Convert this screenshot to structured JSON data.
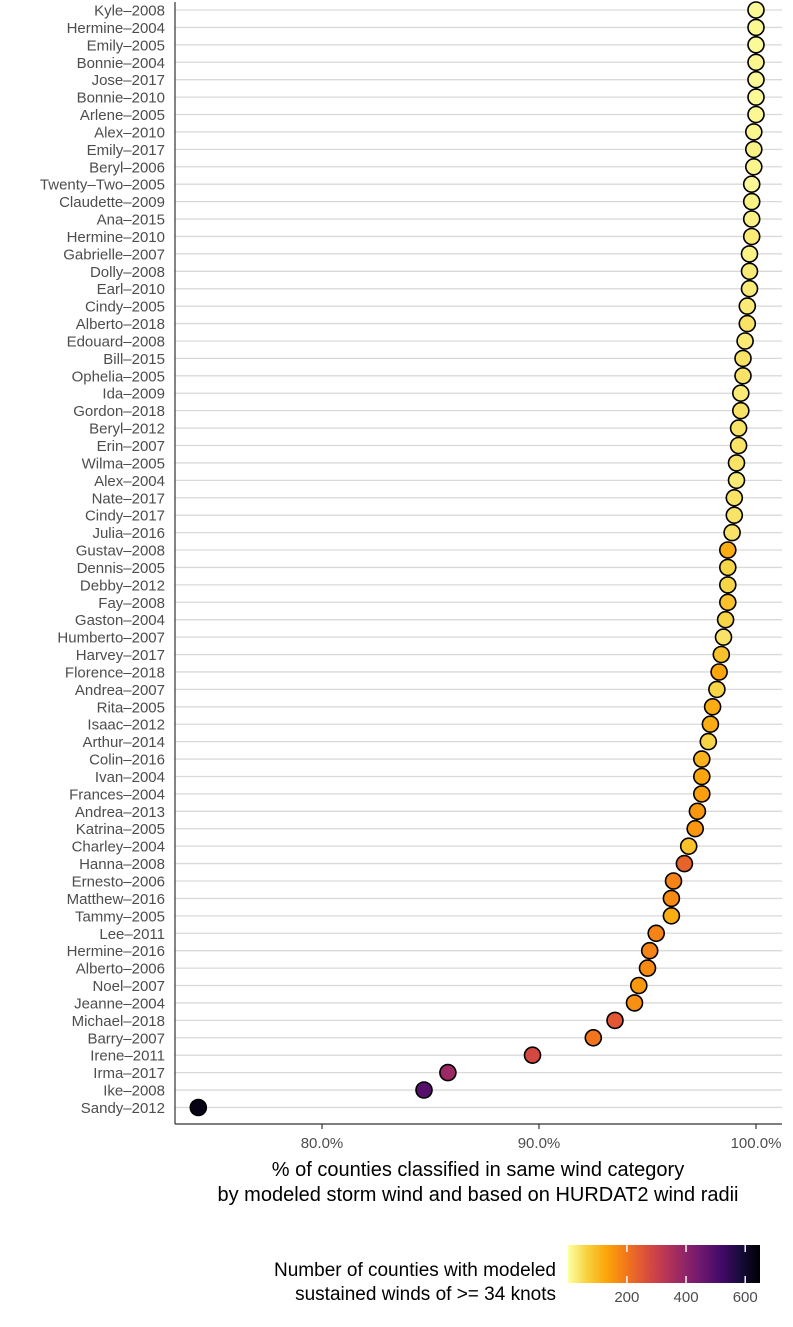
{
  "chart_data": {
    "type": "scatter",
    "title": "",
    "xlabel_lines": [
      "% of counties classified in same wind category",
      "by modeled storm wind and based on HURDAT2 wind radii"
    ],
    "ylabel": "",
    "x_axis": {
      "ticks": [
        80,
        90,
        100
      ],
      "tick_labels": [
        "80.0%",
        "90.0%",
        "100.0%"
      ],
      "range": [
        74.2,
        101.2
      ]
    },
    "grid": "horizontal major lines at each storm",
    "legend": {
      "placement": "bottom",
      "title_lines": [
        "Number of counties with modeled",
        "sustained winds of >= 34 knots"
      ],
      "ticks": [
        200,
        400,
        600
      ],
      "tick_labels": [
        "200",
        "400",
        "600"
      ],
      "range": [
        1,
        650
      ],
      "palette": "inferno (reversed)"
    },
    "points": [
      {
        "storm": "Kyle–2008",
        "pct": 100.0,
        "counties": 10
      },
      {
        "storm": "Hermine–2004",
        "pct": 100.0,
        "counties": 12
      },
      {
        "storm": "Emily–2005",
        "pct": 100.0,
        "counties": 8
      },
      {
        "storm": "Bonnie–2004",
        "pct": 100.0,
        "counties": 15
      },
      {
        "storm": "Jose–2017",
        "pct": 100.0,
        "counties": 10
      },
      {
        "storm": "Bonnie–2010",
        "pct": 100.0,
        "counties": 10
      },
      {
        "storm": "Arlene–2005",
        "pct": 100.0,
        "counties": 12
      },
      {
        "storm": "Alex–2010",
        "pct": 99.9,
        "counties": 15
      },
      {
        "storm": "Emily–2017",
        "pct": 99.9,
        "counties": 20
      },
      {
        "storm": "Beryl–2006",
        "pct": 99.9,
        "counties": 15
      },
      {
        "storm": "Twenty–Two–2005",
        "pct": 99.8,
        "counties": 10
      },
      {
        "storm": "Claudette–2009",
        "pct": 99.8,
        "counties": 20
      },
      {
        "storm": "Ana–2015",
        "pct": 99.8,
        "counties": 20
      },
      {
        "storm": "Hermine–2010",
        "pct": 99.8,
        "counties": 30
      },
      {
        "storm": "Gabrielle–2007",
        "pct": 99.7,
        "counties": 20
      },
      {
        "storm": "Dolly–2008",
        "pct": 99.7,
        "counties": 30
      },
      {
        "storm": "Earl–2010",
        "pct": 99.7,
        "counties": 30
      },
      {
        "storm": "Cindy–2005",
        "pct": 99.6,
        "counties": 30
      },
      {
        "storm": "Alberto–2018",
        "pct": 99.6,
        "counties": 40
      },
      {
        "storm": "Edouard–2008",
        "pct": 99.5,
        "counties": 30
      },
      {
        "storm": "Bill–2015",
        "pct": 99.4,
        "counties": 40
      },
      {
        "storm": "Ophelia–2005",
        "pct": 99.4,
        "counties": 40
      },
      {
        "storm": "Ida–2009",
        "pct": 99.3,
        "counties": 30
      },
      {
        "storm": "Gordon–2018",
        "pct": 99.3,
        "counties": 40
      },
      {
        "storm": "Beryl–2012",
        "pct": 99.2,
        "counties": 40
      },
      {
        "storm": "Erin–2007",
        "pct": 99.2,
        "counties": 40
      },
      {
        "storm": "Wilma–2005",
        "pct": 99.1,
        "counties": 40
      },
      {
        "storm": "Alex–2004",
        "pct": 99.1,
        "counties": 30
      },
      {
        "storm": "Nate–2017",
        "pct": 99.0,
        "counties": 40
      },
      {
        "storm": "Cindy–2017",
        "pct": 99.0,
        "counties": 40
      },
      {
        "storm": "Julia–2016",
        "pct": 98.9,
        "counties": 40
      },
      {
        "storm": "Gustav–2008",
        "pct": 98.7,
        "counties": 120
      },
      {
        "storm": "Dennis–2005",
        "pct": 98.7,
        "counties": 60
      },
      {
        "storm": "Debby–2012",
        "pct": 98.7,
        "counties": 60
      },
      {
        "storm": "Fay–2008",
        "pct": 98.7,
        "counties": 90
      },
      {
        "storm": "Gaston–2004",
        "pct": 98.6,
        "counties": 60
      },
      {
        "storm": "Humberto–2007",
        "pct": 98.5,
        "counties": 40
      },
      {
        "storm": "Harvey–2017",
        "pct": 98.4,
        "counties": 90
      },
      {
        "storm": "Florence–2018",
        "pct": 98.3,
        "counties": 130
      },
      {
        "storm": "Andrea–2007",
        "pct": 98.2,
        "counties": 60
      },
      {
        "storm": "Rita–2005",
        "pct": 98.0,
        "counties": 120
      },
      {
        "storm": "Isaac–2012",
        "pct": 97.9,
        "counties": 120
      },
      {
        "storm": "Arthur–2014",
        "pct": 97.8,
        "counties": 60
      },
      {
        "storm": "Colin–2016",
        "pct": 97.5,
        "counties": 110
      },
      {
        "storm": "Ivan–2004",
        "pct": 97.5,
        "counties": 130
      },
      {
        "storm": "Frances–2004",
        "pct": 97.5,
        "counties": 140
      },
      {
        "storm": "Andrea–2013",
        "pct": 97.3,
        "counties": 150
      },
      {
        "storm": "Katrina–2005",
        "pct": 97.2,
        "counties": 150
      },
      {
        "storm": "Charley–2004",
        "pct": 96.9,
        "counties": 90
      },
      {
        "storm": "Hanna–2008",
        "pct": 96.7,
        "counties": 230
      },
      {
        "storm": "Ernesto–2006",
        "pct": 96.2,
        "counties": 180
      },
      {
        "storm": "Matthew–2016",
        "pct": 96.1,
        "counties": 170
      },
      {
        "storm": "Tammy–2005",
        "pct": 96.1,
        "counties": 120
      },
      {
        "storm": "Lee–2011",
        "pct": 95.4,
        "counties": 180
      },
      {
        "storm": "Hermine–2016",
        "pct": 95.1,
        "counties": 180
      },
      {
        "storm": "Alberto–2006",
        "pct": 95.0,
        "counties": 170
      },
      {
        "storm": "Noel–2007",
        "pct": 94.6,
        "counties": 150
      },
      {
        "storm": "Jeanne–2004",
        "pct": 94.4,
        "counties": 160
      },
      {
        "storm": "Michael–2018",
        "pct": 93.5,
        "counties": 250
      },
      {
        "storm": "Barry–2007",
        "pct": 92.5,
        "counties": 200
      },
      {
        "storm": "Irene–2011",
        "pct": 89.7,
        "counties": 280
      },
      {
        "storm": "Irma–2017",
        "pct": 85.8,
        "counties": 380
      },
      {
        "storm": "Ike–2008",
        "pct": 84.7,
        "counties": 490
      },
      {
        "storm": "Sandy–2012",
        "pct": 74.3,
        "counties": 630
      }
    ]
  }
}
